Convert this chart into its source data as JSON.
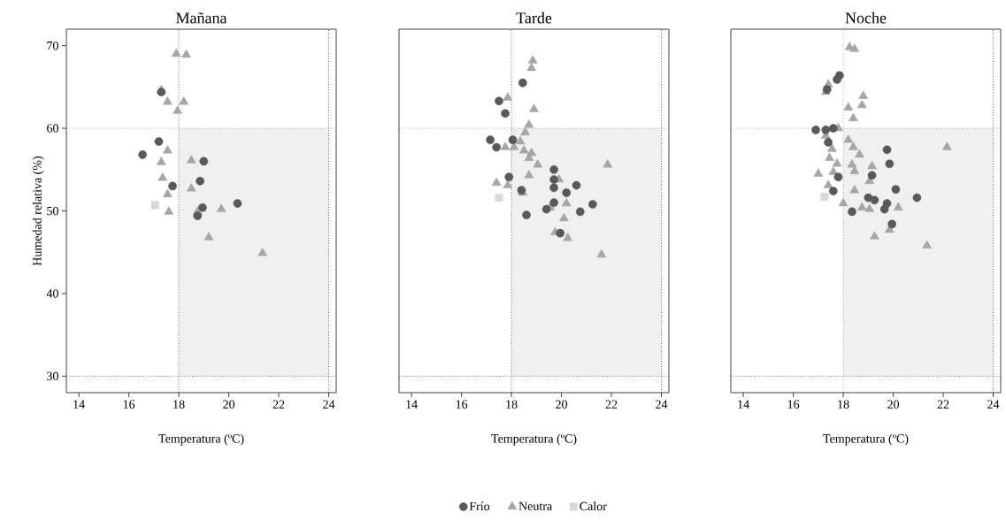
{
  "chart_data": [
    {
      "type": "scatter",
      "title": "Mañana",
      "xlabel": "Temperatura (ºC)",
      "ylabel": "Humedad relativa (%)",
      "xlim": [
        13.5,
        24.3
      ],
      "ylim": [
        28,
        72
      ],
      "xticks": [
        14,
        16,
        18,
        20,
        22,
        24
      ],
      "yticks": [
        30,
        40,
        50,
        60,
        70
      ],
      "grid": false,
      "ref_lines": [
        {
          "axis": "x",
          "value": 18,
          "line_style": "dotted"
        },
        {
          "axis": "x",
          "value": 24,
          "line_style": "dotted"
        },
        {
          "axis": "y",
          "value": 60,
          "line_style": "dotted"
        },
        {
          "axis": "y",
          "value": 30,
          "line_style": "dotted"
        }
      ],
      "bands": [
        {
          "axis": "x",
          "from": 18,
          "to": 24,
          "color": "#f0f0f0"
        }
      ],
      "series": [
        {
          "color": "#595959",
          "marker": "circle",
          "x": [
            17.3,
            17.2,
            16.55,
            19.0,
            17.75,
            18.85,
            18.95,
            20.35,
            18.75
          ],
          "values": [
            64.4,
            58.4,
            56.8,
            56.0,
            53.0,
            53.6,
            50.4,
            50.9,
            49.4
          ]
        },
        {
          "color": "#a6a6a6",
          "marker": "triangle",
          "x": [
            17.9,
            18.3,
            17.3,
            17.55,
            18.2,
            17.95,
            17.55,
            17.3,
            18.5,
            17.35,
            18.5,
            17.55,
            17.6,
            18.75,
            19.7,
            19.2,
            21.35
          ],
          "values": [
            69.0,
            68.9,
            64.6,
            63.2,
            63.2,
            62.1,
            57.3,
            55.9,
            56.1,
            54.0,
            52.7,
            52.0,
            49.9,
            49.9,
            50.2,
            46.8,
            44.9
          ]
        },
        {
          "color": "#d9d9d9",
          "marker": "square",
          "x": [
            17.05
          ],
          "values": [
            50.7
          ]
        }
      ]
    },
    {
      "type": "scatter",
      "title": "Tarde",
      "xlabel": "Temperatura (ºC)",
      "xlim": [
        13.5,
        24.3
      ],
      "ylim": [
        28,
        72
      ],
      "xticks": [
        14,
        16,
        18,
        20,
        22,
        24
      ],
      "yticks": [
        30,
        40,
        50,
        60,
        70
      ],
      "grid": false,
      "tick_labels": "x",
      "legend": "bottom",
      "ref_lines": [
        {
          "axis": "x",
          "value": 18,
          "line_style": "dotted"
        },
        {
          "axis": "x",
          "value": 24,
          "line_style": "dotted"
        },
        {
          "axis": "y",
          "value": 60,
          "line_style": "dotted"
        },
        {
          "axis": "y",
          "value": 30,
          "line_style": "dotted"
        }
      ],
      "bands": [
        {
          "axis": "x",
          "from": 18,
          "to": 24,
          "color": "#f0f0f0"
        }
      ],
      "series": [
        {
          "name": "Frío",
          "color": "#595959",
          "marker": "circle",
          "x": [
            18.45,
            17.5,
            17.75,
            17.15,
            17.4,
            18.05,
            17.9,
            18.4,
            19.7,
            19.7,
            19.7,
            20.2,
            20.6,
            19.7,
            19.4,
            21.25,
            20.75,
            18.6,
            19.95
          ],
          "values": [
            65.5,
            63.3,
            61.8,
            58.6,
            57.7,
            58.6,
            54.1,
            52.5,
            55.0,
            53.8,
            52.8,
            52.2,
            53.1,
            51.0,
            50.2,
            50.8,
            49.9,
            49.5,
            47.3
          ]
        },
        {
          "name": "Neutra",
          "color": "#a6a6a6",
          "marker": "triangle",
          "x": [
            18.85,
            18.8,
            17.85,
            18.9,
            18.7,
            18.55,
            18.35,
            18.1,
            18.5,
            18.8,
            18.7,
            19.05,
            18.7,
            19.9,
            17.4,
            17.85,
            18.45,
            19.55,
            20.2,
            20.1,
            19.75,
            20.25,
            21.6,
            21.85,
            17.75
          ],
          "values": [
            68.2,
            67.3,
            63.7,
            62.3,
            60.4,
            59.5,
            58.4,
            57.7,
            57.3,
            57.0,
            56.4,
            55.6,
            54.3,
            53.8,
            53.4,
            53.1,
            52.2,
            50.4,
            50.9,
            49.1,
            47.4,
            46.7,
            44.7,
            55.6,
            57.7
          ]
        },
        {
          "name": "Calor",
          "color": "#d9d9d9",
          "marker": "square",
          "x": [
            17.5
          ],
          "values": [
            51.6
          ]
        }
      ]
    },
    {
      "type": "scatter",
      "title": "Noche",
      "xlabel": "Temperatura (ºC)",
      "xlim": [
        13.5,
        24.3
      ],
      "ylim": [
        28,
        72
      ],
      "xticks": [
        14,
        16,
        18,
        20,
        22,
        24
      ],
      "yticks": [
        30,
        40,
        50,
        60,
        70
      ],
      "grid": false,
      "tick_labels": "x",
      "ref_lines": [
        {
          "axis": "x",
          "value": 18,
          "line_style": "dotted"
        },
        {
          "axis": "x",
          "value": 24,
          "line_style": "dotted"
        },
        {
          "axis": "y",
          "value": 60,
          "line_style": "dotted"
        },
        {
          "axis": "y",
          "value": 30,
          "line_style": "dotted"
        }
      ],
      "bands": [
        {
          "axis": "x",
          "from": 18,
          "to": 24,
          "color": "#f0f0f0"
        }
      ],
      "series": [
        {
          "color": "#595959",
          "marker": "circle",
          "x": [
            17.85,
            17.75,
            17.35,
            16.9,
            17.3,
            17.6,
            17.4,
            17.8,
            17.6,
            18.35,
            19.15,
            19.75,
            19.85,
            20.1,
            20.95,
            19.0,
            19.25,
            19.75,
            19.65,
            19.95
          ],
          "values": [
            66.4,
            65.9,
            64.7,
            59.8,
            59.8,
            60.0,
            58.3,
            54.1,
            52.4,
            49.9,
            54.3,
            57.4,
            55.7,
            52.6,
            51.6,
            51.6,
            51.3,
            50.9,
            50.2,
            48.4
          ]
        },
        {
          "color": "#a6a6a6",
          "marker": "triangle",
          "x": [
            18.25,
            18.45,
            17.4,
            17.3,
            18.8,
            18.75,
            18.2,
            18.4,
            17.8,
            18.2,
            17.3,
            18.4,
            18.65,
            17.55,
            17.45,
            17.75,
            18.35,
            18.45,
            19.15,
            17.0,
            17.6,
            19.05,
            17.4,
            18.45,
            18.0,
            18.75,
            19.05,
            20.2,
            19.85,
            19.25,
            21.35,
            22.15
          ],
          "values": [
            69.8,
            69.6,
            65.3,
            64.4,
            63.9,
            62.8,
            62.5,
            61.2,
            60.0,
            58.6,
            59.1,
            57.7,
            56.8,
            57.5,
            56.4,
            55.7,
            55.6,
            54.8,
            55.4,
            54.5,
            54.7,
            53.6,
            53.1,
            52.5,
            50.9,
            50.4,
            50.2,
            50.4,
            47.7,
            46.9,
            45.8,
            57.7
          ]
        },
        {
          "color": "#d9d9d9",
          "marker": "square",
          "x": [
            17.25
          ],
          "values": [
            51.7
          ]
        }
      ]
    }
  ]
}
